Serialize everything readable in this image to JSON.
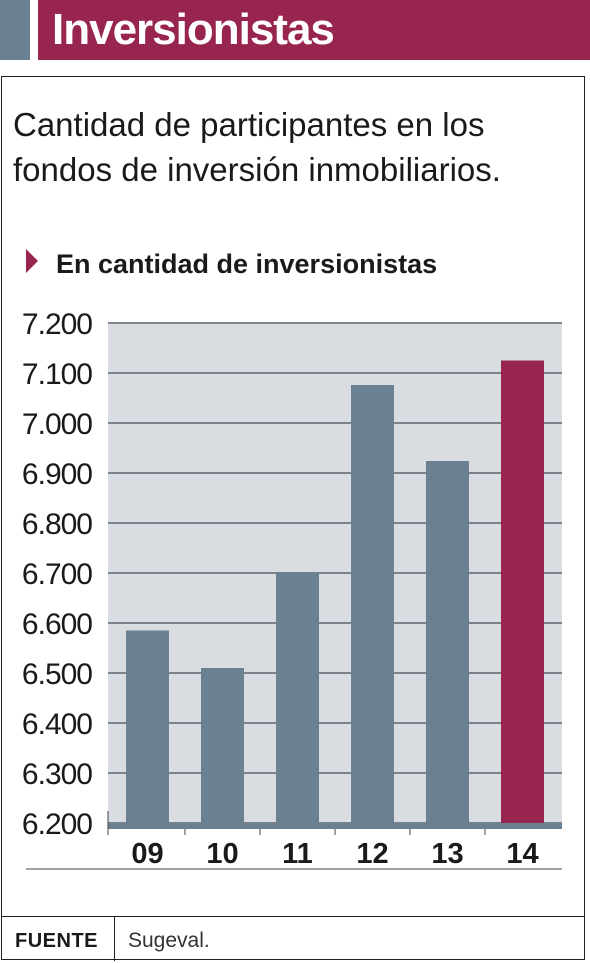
{
  "header": {
    "title": "Inversionistas"
  },
  "subtitle": "Cantidad de participantes en los fondos de inversión inmobiliarios.",
  "unit_label": "En cantidad de inversionistas",
  "footer": {
    "source_label": "FUENTE",
    "source_value": "Sugeval."
  },
  "colors": {
    "accent": "#98254f",
    "bar": "#6b8191",
    "plot_bg": "#d9dce0",
    "header_block": "#6b8191"
  },
  "chart_data": {
    "type": "bar",
    "categories": [
      "09",
      "10",
      "11",
      "12",
      "13",
      "14"
    ],
    "values": [
      6585,
      6510,
      6702,
      7076,
      6924,
      7125
    ],
    "highlight_index": 5,
    "ylim": [
      6200,
      7200
    ],
    "yticks": [
      7200,
      7100,
      7000,
      6900,
      6800,
      6700,
      6600,
      6500,
      6400,
      6300,
      6200
    ],
    "ytick_labels": [
      "7.200",
      "7.100",
      "7.000",
      "6.900",
      "6.800",
      "6.700",
      "6.600",
      "6.500",
      "6.400",
      "6.300",
      "6.200"
    ],
    "grid": true,
    "title": "",
    "xlabel": "",
    "ylabel": ""
  }
}
